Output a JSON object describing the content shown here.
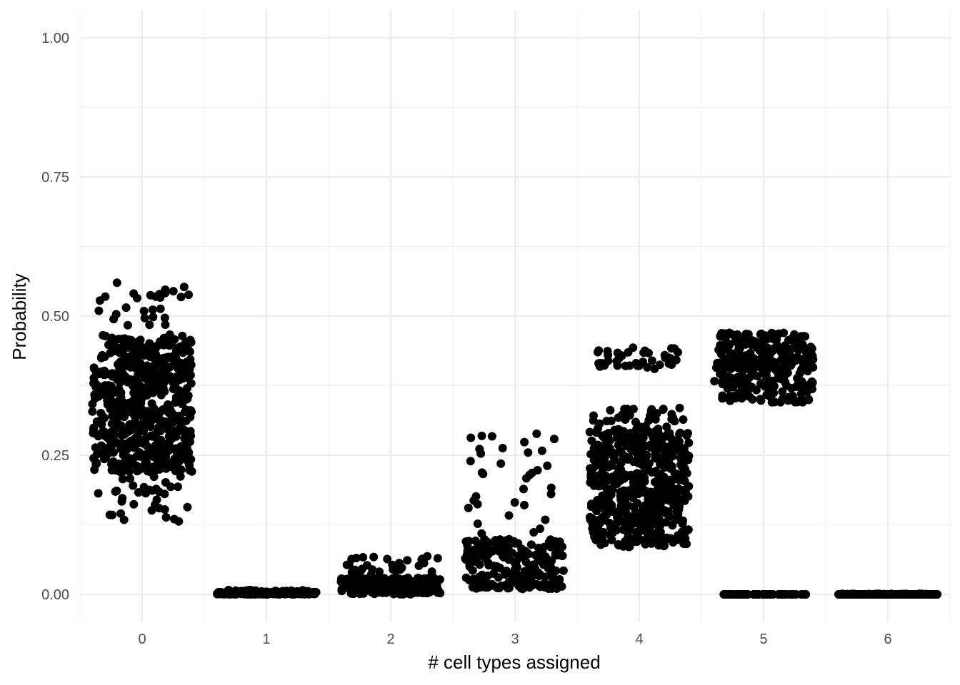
{
  "chart_data": {
    "type": "scatter",
    "title": "",
    "xlabel": "# cell types assigned",
    "ylabel": "Probability",
    "x_categories": [
      "0",
      "1",
      "2",
      "3",
      "4",
      "5",
      "6"
    ],
    "y_ticks": [
      0,
      0.25,
      0.5,
      0.75,
      1
    ],
    "y_tick_labels": [
      "0.00",
      "0.25",
      "0.50",
      "0.75",
      "1.00"
    ],
    "ylim": [
      -0.05,
      1.05
    ],
    "xlim": [
      -0.5,
      6.5
    ],
    "grid": true,
    "legend": "none",
    "point_color": "#000000",
    "jitter_groups": [
      {
        "category": "0",
        "dense_range": [
          0.22,
          0.46
        ],
        "outlier_range": [
          0.13,
          0.56
        ]
      },
      {
        "category": "1",
        "dense_range": [
          0.0,
          0.004
        ],
        "outlier_range": [
          0.0,
          0.008
        ]
      },
      {
        "category": "2",
        "dense_range": [
          0.0,
          0.03
        ],
        "outlier_range": [
          0.0,
          0.07
        ]
      },
      {
        "category": "3",
        "dense_range": [
          0.015,
          0.1
        ],
        "outlier_range": [
          0.01,
          0.3
        ]
      },
      {
        "category": "4",
        "dense_range": [
          0.1,
          0.3
        ],
        "outlier_range": [
          0.085,
          0.335
        ],
        "upper_cluster": [
          0.405,
          0.445
        ]
      },
      {
        "category": "5",
        "dense_range": [
          0.36,
          0.46
        ],
        "outlier_range": [
          0.345,
          0.47
        ],
        "zero_cluster": [
          0.0,
          0.0
        ]
      },
      {
        "category": "6",
        "dense_range": [
          0.0,
          0.0
        ],
        "outlier_range": [
          0.0,
          0.001
        ]
      }
    ]
  }
}
